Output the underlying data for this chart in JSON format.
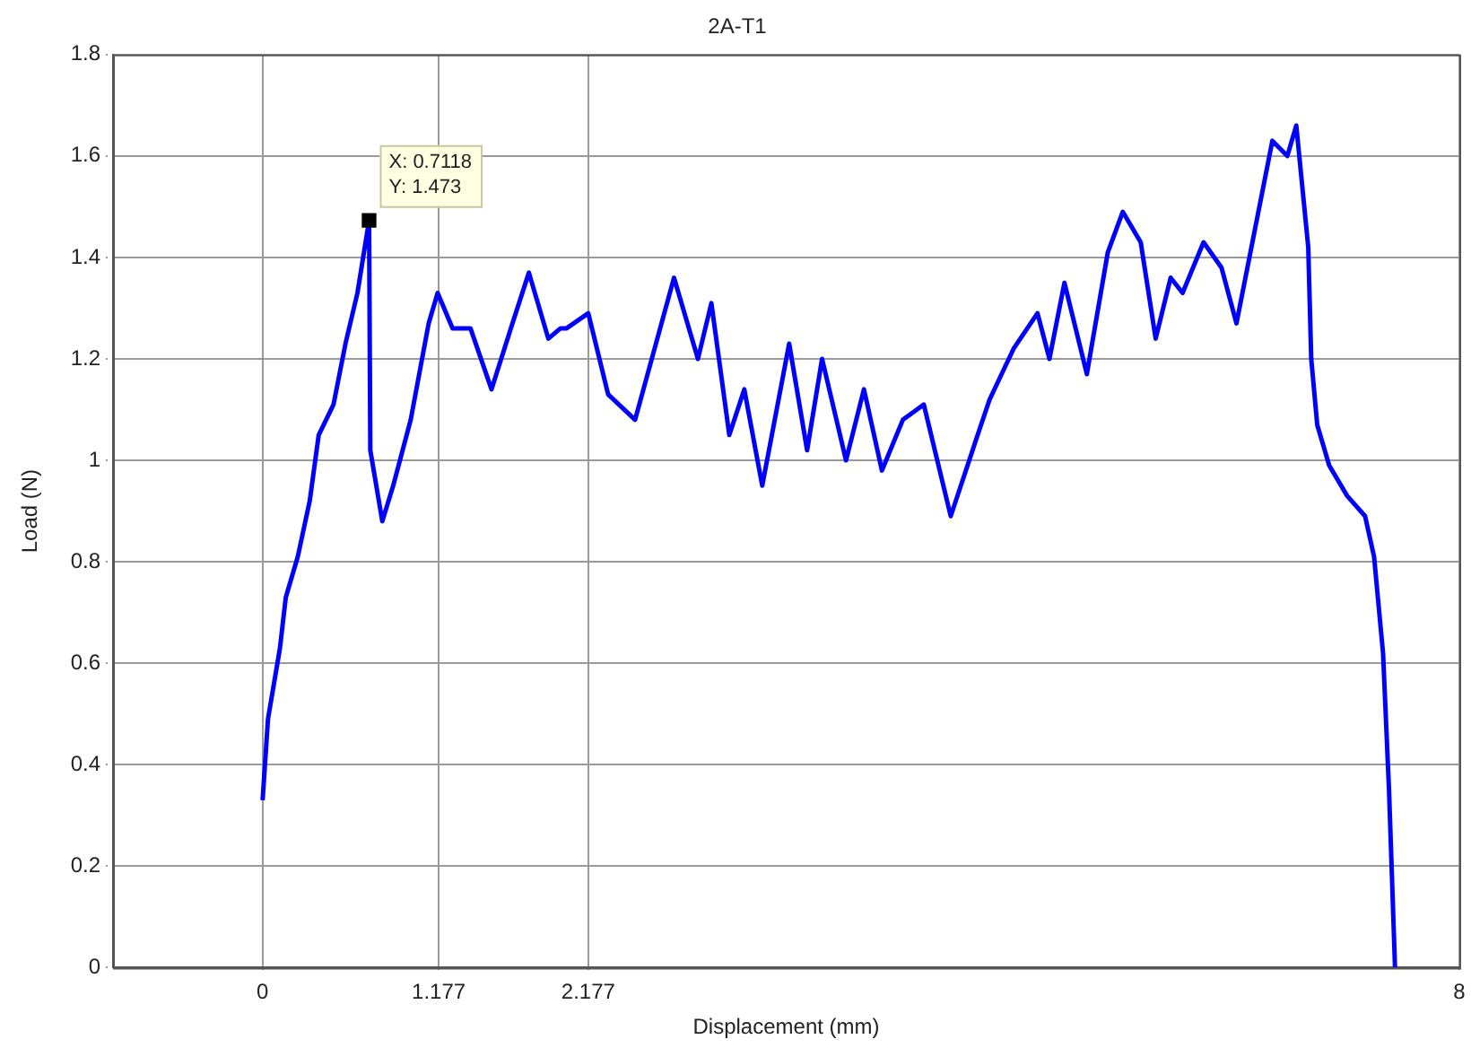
{
  "chart_data": {
    "type": "line",
    "title": "2A-T1",
    "xlabel": "Displacement (mm)",
    "ylabel": "Load (N)",
    "x": [
      0,
      0.036,
      0.116,
      0.155,
      0.235,
      0.315,
      0.375,
      0.474,
      0.554,
      0.634,
      0.7118,
      0.72,
      0.8,
      0.873,
      0.99,
      1.11,
      1.17,
      1.27,
      1.39,
      1.53,
      1.67,
      1.78,
      1.91,
      1.99,
      2.03,
      2.177,
      2.31,
      2.49,
      2.75,
      2.91,
      3.0,
      3.12,
      3.22,
      3.34,
      3.52,
      3.64,
      3.74,
      3.9,
      4.02,
      4.14,
      4.28,
      4.42,
      4.6,
      4.78,
      4.86,
      4.94,
      5.02,
      5.18,
      5.26,
      5.36,
      5.51,
      5.65,
      5.75,
      5.87,
      5.97,
      6.07,
      6.15,
      6.29,
      6.41,
      6.51,
      6.65,
      6.75,
      6.85,
      6.91,
      6.95,
      6.99,
      7.01,
      7.05,
      7.13,
      7.25,
      7.37,
      7.43,
      7.49,
      7.53,
      7.57
    ],
    "series": [
      {
        "type": "scatter",
        "color": "#000000",
        "marker": "square",
        "x": [
          0.7118
        ],
        "values": [
          1.473
        ]
      },
      {
        "color": "#0000ff",
        "values": [
          0.33,
          0.49,
          0.63,
          0.73,
          0.81,
          0.92,
          1.05,
          1.11,
          1.23,
          1.33,
          1.473,
          1.02,
          0.88,
          0.95,
          1.08,
          1.27,
          1.33,
          1.26,
          1.26,
          1.14,
          1.27,
          1.37,
          1.24,
          1.26,
          1.26,
          1.29,
          1.13,
          1.08,
          1.36,
          1.2,
          1.31,
          1.05,
          1.14,
          0.95,
          1.23,
          1.02,
          1.2,
          1.0,
          1.14,
          0.98,
          1.08,
          1.11,
          0.89,
          1.05,
          1.12,
          1.17,
          1.22,
          1.29,
          1.2,
          1.35,
          1.17,
          1.41,
          1.49,
          1.43,
          1.24,
          1.36,
          1.33,
          1.43,
          1.38,
          1.27,
          1.48,
          1.63,
          1.6,
          1.66,
          1.54,
          1.42,
          1.2,
          1.07,
          0.99,
          0.93,
          0.89,
          0.81,
          0.62,
          0.35,
          0
        ]
      }
    ],
    "xlim": [
      -1,
      8
    ],
    "xticks": [
      0,
      1.177,
      2.177,
      8
    ],
    "ylim": [
      0,
      1.8
    ],
    "yticks": [
      0,
      0.2,
      0.4,
      0.6,
      0.8,
      1,
      1.2,
      1.4,
      1.6,
      1.8
    ],
    "grid": true,
    "legend": false,
    "marker": "none",
    "line_style": "solid",
    "annotations": [
      {
        "text": "X: 0.7118\nY: 1.473",
        "x": 0.7118,
        "y": 1.473
      }
    ]
  }
}
